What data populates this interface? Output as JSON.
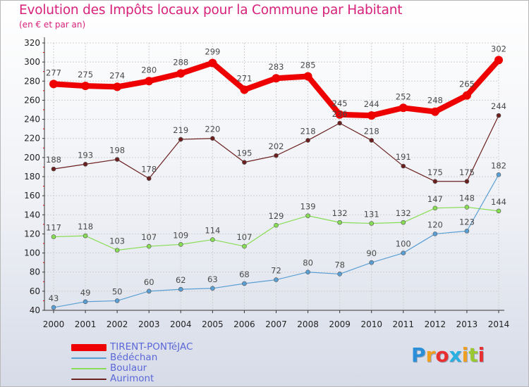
{
  "title": "Evolution des Impôts locaux pour la Commune par Habitant",
  "subtitle": "(en € et par an)",
  "logo": "Proxiti",
  "chart_data": {
    "type": "line",
    "x": [
      2000,
      2001,
      2002,
      2003,
      2004,
      2005,
      2006,
      2007,
      2008,
      2009,
      2010,
      2011,
      2012,
      2013,
      2014
    ],
    "ylim": [
      40,
      320
    ],
    "yticks": [
      40,
      60,
      80,
      100,
      120,
      140,
      160,
      180,
      200,
      220,
      240,
      260,
      280,
      300,
      320
    ],
    "grid": true,
    "legend_position": "bottom-left",
    "series": [
      {
        "name": "TIRENT-PONTéJAC",
        "color": "#ee0000",
        "values": [
          277,
          275,
          274,
          280,
          288,
          299,
          271,
          283,
          285,
          245,
          244,
          252,
          248,
          265,
          302
        ]
      },
      {
        "name": "Bédéchan",
        "color": "#5a9fd4",
        "values": [
          43,
          49,
          50,
          60,
          62,
          63,
          68,
          72,
          80,
          78,
          90,
          100,
          120,
          123,
          182
        ]
      },
      {
        "name": "Boulaur",
        "color": "#88dd55",
        "values": [
          117,
          118,
          103,
          107,
          109,
          114,
          107,
          129,
          139,
          132,
          131,
          132,
          147,
          148,
          144
        ]
      },
      {
        "name": "Aurimont",
        "color": "#6b1f1f",
        "values": [
          188,
          193,
          198,
          178,
          219,
          220,
          195,
          202,
          218,
          236,
          218,
          191,
          175,
          175,
          244
        ]
      }
    ]
  }
}
